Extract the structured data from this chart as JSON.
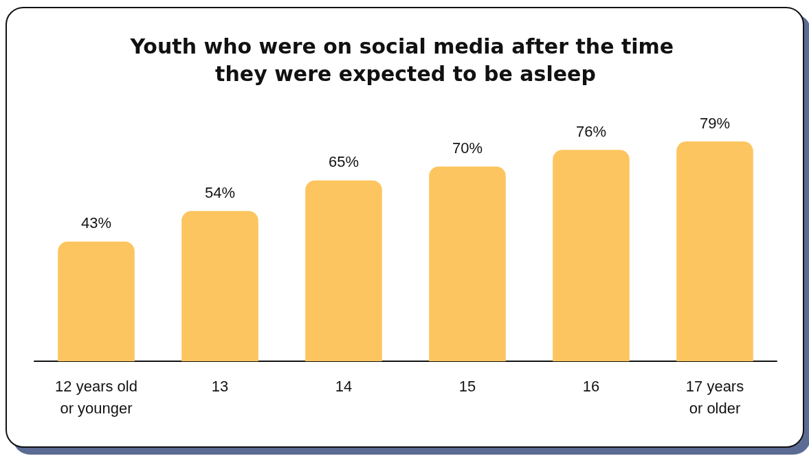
{
  "chart_data": {
    "type": "bar",
    "title": "Youth who were on social media after the time they were expected to be asleep",
    "categories": [
      "12 years old\nor younger",
      "13",
      "14",
      "15",
      "16",
      "17 years\nor older"
    ],
    "values": [
      43,
      54,
      65,
      70,
      76,
      79
    ],
    "value_labels": [
      "43%",
      "54%",
      "65%",
      "70%",
      "76%",
      "79%"
    ],
    "color": "#fdc55f",
    "grid": false
  }
}
